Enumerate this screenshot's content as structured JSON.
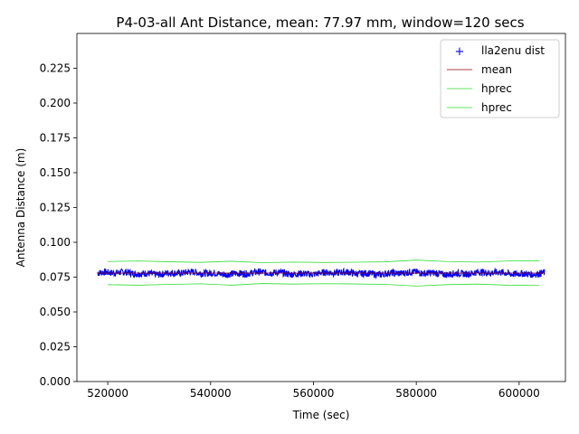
{
  "chart_data": {
    "type": "line",
    "title": "P4-03-all Ant Distance, mean: 77.97 mm, window=120 secs",
    "xlabel": "Time (sec)",
    "ylabel": "Antenna Distance (m)",
    "xlim": [
      514000,
      609000
    ],
    "ylim": [
      0.0,
      0.25
    ],
    "xticks": [
      520000,
      540000,
      560000,
      580000,
      600000
    ],
    "xtick_labels": [
      "520000",
      "540000",
      "560000",
      "580000",
      "600000"
    ],
    "yticks": [
      0.0,
      0.025,
      0.05,
      0.075,
      0.1,
      0.125,
      0.15,
      0.175,
      0.2,
      0.225
    ],
    "ytick_labels": [
      "0.000",
      "0.025",
      "0.050",
      "0.075",
      "0.100",
      "0.125",
      "0.150",
      "0.175",
      "0.200",
      "0.225"
    ],
    "grid": false,
    "legend_position": "top-right",
    "series": [
      {
        "name": "lla2enu dist",
        "marker": "+",
        "color": "#0000ff",
        "x_range": [
          518000,
          605000
        ],
        "mean": 0.0778,
        "spread": 0.0025
      },
      {
        "name": "mean",
        "color": "#8b0000",
        "x": [
          518000,
          605000
        ],
        "values": [
          0.0779,
          0.0779
        ]
      },
      {
        "name": "hprec",
        "color": "#33dd33",
        "x": [
          520000,
          526000,
          532000,
          538000,
          544000,
          550000,
          556000,
          562000,
          568000,
          574000,
          580000,
          586000,
          592000,
          598000,
          604000
        ],
        "values": [
          0.0862,
          0.0866,
          0.086,
          0.0856,
          0.0864,
          0.0854,
          0.0858,
          0.0855,
          0.0857,
          0.086,
          0.0872,
          0.0862,
          0.0858,
          0.0866,
          0.0868
        ]
      },
      {
        "name": "hprec",
        "color": "#33dd33",
        "x": [
          520000,
          526000,
          532000,
          538000,
          544000,
          550000,
          556000,
          562000,
          568000,
          574000,
          580000,
          586000,
          592000,
          598000,
          604000
        ],
        "values": [
          0.0696,
          0.0692,
          0.0698,
          0.0702,
          0.0692,
          0.0704,
          0.07,
          0.0703,
          0.0701,
          0.0698,
          0.0686,
          0.0696,
          0.07,
          0.0692,
          0.069
        ]
      }
    ]
  }
}
